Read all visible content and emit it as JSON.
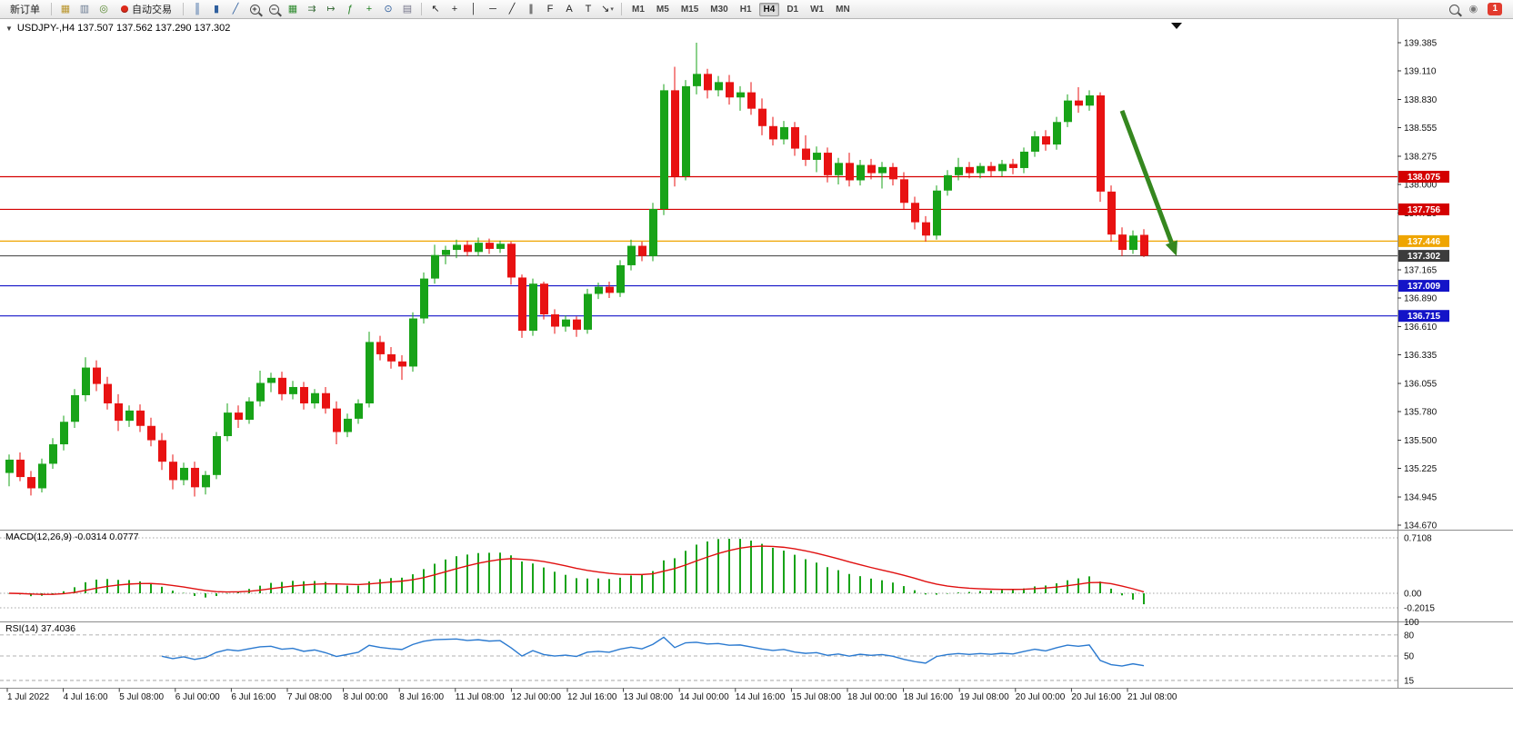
{
  "toolbar": {
    "new_order_label": "新订单",
    "auto_trading_label": "自动交易",
    "notification_count": "1",
    "timeframes": [
      "M1",
      "M5",
      "M15",
      "M30",
      "H1",
      "H4",
      "D1",
      "W1",
      "MN"
    ],
    "active_timeframe": "H4",
    "icons_file": [
      {
        "name": "new-chart-icon",
        "glyph": "▦",
        "color": "#b9952c"
      },
      {
        "name": "profiles-icon",
        "glyph": "▥",
        "color": "#6b7b92"
      },
      {
        "name": "data-window-icon",
        "glyph": "◎",
        "color": "#57872f"
      }
    ],
    "icons_chart": [
      {
        "name": "bar-chart-icon",
        "glyph": "║",
        "color": "#2f5f9e"
      },
      {
        "name": "candlestick-chart-icon",
        "glyph": "▮",
        "color": "#2f5f9e"
      },
      {
        "name": "line-chart-icon",
        "glyph": "╱",
        "color": "#2f5f9e"
      },
      {
        "name": "zoom-in-icon",
        "type": "mag",
        "char": "+"
      },
      {
        "name": "zoom-out-icon",
        "type": "mag",
        "char": "−"
      },
      {
        "name": "tile-windows-icon",
        "glyph": "▦",
        "color": "#2e8b2e"
      },
      {
        "name": "auto-scroll-icon",
        "glyph": "⇉",
        "color": "#3f6f3f"
      },
      {
        "name": "chart-shift-icon",
        "glyph": "↦",
        "color": "#3f6f3f"
      },
      {
        "name": "indicators-icon",
        "glyph": "ƒ",
        "color": "#1f7f1f"
      },
      {
        "name": "add-indicator-icon",
        "glyph": "+",
        "color": "#1f7f1f"
      },
      {
        "name": "timeframes-icon",
        "glyph": "⊙",
        "color": "#33619e"
      },
      {
        "name": "snapshot-icon",
        "glyph": "▤",
        "color": "#76768a"
      }
    ],
    "icons_draw": [
      {
        "name": "cursor-icon",
        "glyph": "↖",
        "color": "#222222"
      },
      {
        "name": "crosshair-icon",
        "glyph": "+",
        "color": "#222222"
      },
      {
        "name": "vertical-line-icon",
        "glyph": "│",
        "color": "#222222"
      },
      {
        "name": "horizontal-line-icon",
        "glyph": "─",
        "color": "#222222"
      },
      {
        "name": "trendline-icon",
        "glyph": "╱",
        "color": "#222222"
      },
      {
        "name": "channel-icon",
        "glyph": "∥",
        "color": "#222222"
      },
      {
        "name": "fibonacci-icon",
        "glyph": "F",
        "color": "#222222"
      },
      {
        "name": "text-icon",
        "glyph": "A",
        "color": "#222222"
      },
      {
        "name": "label-icon",
        "glyph": "T",
        "color": "#222222"
      },
      {
        "name": "arrows-icon",
        "glyph": "↘",
        "color": "#222222",
        "caret": true
      }
    ],
    "icons_right": [
      {
        "name": "search-icon",
        "type": "mag",
        "char": ""
      },
      {
        "name": "community-icon",
        "glyph": "◉",
        "color": "#777777"
      }
    ]
  },
  "chart": {
    "collapse_glyph": "▼",
    "title": "USDJPY-,H4 137.507 137.562 137.290 137.302",
    "macd_label": "MACD(12,26,9) -0.0314 0.0777",
    "rsi_label": "RSI(14) 37.4036",
    "price_axis": [
      "139.385",
      "139.110",
      "138.830",
      "138.555",
      "138.275",
      "138.000",
      "137.720",
      "137.165",
      "136.890",
      "136.610",
      "136.335",
      "136.055",
      "135.780",
      "135.500",
      "135.225",
      "134.945",
      "134.670"
    ],
    "macd_axis": [
      "0.7108",
      "0.00",
      "-0.2015"
    ],
    "rsi_axis": [
      "100",
      "80",
      "50",
      "15"
    ],
    "levels": [
      {
        "price": "138.075",
        "value": 138.075,
        "color": "#d40000",
        "style": "line"
      },
      {
        "price": "137.756",
        "value": 137.756,
        "color": "#d40000",
        "style": "line"
      },
      {
        "price": "137.446",
        "value": 137.446,
        "color": "#efa500",
        "style": "line"
      },
      {
        "price": "137.302",
        "value": 137.302,
        "color": "#3c3c3c",
        "style": "current"
      },
      {
        "price": "137.009",
        "value": 137.009,
        "color": "#1414c8",
        "style": "line"
      },
      {
        "price": "136.715",
        "value": 136.715,
        "color": "#1414c8",
        "style": "line"
      }
    ],
    "time_axis": [
      "1 Jul 2022",
      "4 Jul 16:00",
      "5 Jul 08:00",
      "6 Jul 00:00",
      "6 Jul 16:00",
      "7 Jul 08:00",
      "8 Jul 00:00",
      "8 Jul 16:00",
      "11 Jul 08:00",
      "12 Jul 00:00",
      "12 Jul 16:00",
      "13 Jul 08:00",
      "14 Jul 00:00",
      "14 Jul 16:00",
      "15 Jul 08:00",
      "18 Jul 00:00",
      "18 Jul 16:00",
      "19 Jul 08:00",
      "20 Jul 00:00",
      "20 Jul 16:00",
      "21 Jul 08:00"
    ]
  },
  "chart_data": {
    "type": "candlestick",
    "symbol": "USDJPY-",
    "timeframe": "H4",
    "up_color": "#18a318",
    "down_color": "#e81212",
    "indicators": {
      "macd": {
        "params": "12,26,9",
        "value": "-0.0314",
        "signal_value": "0.0777",
        "histogram_color": "#18a318",
        "signal_color": "#e01010"
      },
      "rsi": {
        "params": "14",
        "value": "37.4036",
        "line_color": "#2b7ad0",
        "levels": [
          80,
          50,
          15
        ]
      }
    },
    "annotation_arrow": {
      "from_bar": 102,
      "from_price": 138.72,
      "to_bar": 107,
      "to_price": 137.3,
      "color": "#35871f"
    },
    "candles": [
      [
        135.18,
        135.36,
        135.05,
        135.31
      ],
      [
        135.31,
        135.38,
        135.1,
        135.14
      ],
      [
        135.14,
        135.2,
        134.96,
        135.03
      ],
      [
        135.03,
        135.32,
        134.99,
        135.27
      ],
      [
        135.27,
        135.52,
        135.22,
        135.46
      ],
      [
        135.46,
        135.74,
        135.4,
        135.68
      ],
      [
        135.68,
        136.0,
        135.62,
        135.94
      ],
      [
        135.94,
        136.31,
        135.88,
        136.21
      ],
      [
        136.21,
        136.28,
        135.98,
        136.05
      ],
      [
        136.05,
        136.12,
        135.8,
        135.86
      ],
      [
        135.86,
        135.95,
        135.59,
        135.69
      ],
      [
        135.69,
        135.84,
        135.63,
        135.79
      ],
      [
        135.79,
        135.85,
        135.58,
        135.64
      ],
      [
        135.64,
        135.72,
        135.44,
        135.5
      ],
      [
        135.5,
        135.57,
        135.21,
        135.29
      ],
      [
        135.29,
        135.36,
        135.02,
        135.11
      ],
      [
        135.11,
        135.28,
        135.06,
        135.23
      ],
      [
        135.23,
        135.29,
        134.95,
        135.04
      ],
      [
        135.04,
        135.2,
        134.97,
        135.16
      ],
      [
        135.16,
        135.58,
        135.12,
        135.54
      ],
      [
        135.54,
        135.86,
        135.49,
        135.77
      ],
      [
        135.77,
        135.84,
        135.62,
        135.7
      ],
      [
        135.7,
        135.92,
        135.66,
        135.88
      ],
      [
        135.88,
        136.18,
        135.83,
        136.06
      ],
      [
        136.06,
        136.16,
        135.97,
        136.11
      ],
      [
        136.11,
        136.17,
        135.89,
        135.95
      ],
      [
        135.95,
        136.08,
        135.9,
        136.02
      ],
      [
        136.02,
        136.07,
        135.8,
        135.86
      ],
      [
        135.86,
        136.0,
        135.81,
        135.96
      ],
      [
        135.96,
        136.02,
        135.76,
        135.81
      ],
      [
        135.81,
        135.88,
        135.46,
        135.58
      ],
      [
        135.58,
        135.76,
        135.53,
        135.71
      ],
      [
        135.71,
        135.9,
        135.66,
        135.86
      ],
      [
        135.86,
        136.56,
        135.82,
        136.46
      ],
      [
        136.46,
        136.52,
        136.28,
        136.34
      ],
      [
        136.34,
        136.41,
        136.2,
        136.27
      ],
      [
        136.27,
        136.33,
        136.09,
        136.22
      ],
      [
        136.22,
        136.75,
        136.17,
        136.69
      ],
      [
        136.69,
        137.14,
        136.64,
        137.08
      ],
      [
        137.08,
        137.41,
        137.03,
        137.31
      ],
      [
        137.31,
        137.4,
        137.22,
        137.36
      ],
      [
        137.36,
        137.46,
        137.28,
        137.41
      ],
      [
        137.41,
        137.45,
        137.3,
        137.34
      ],
      [
        137.34,
        137.48,
        137.3,
        137.43
      ],
      [
        137.43,
        137.47,
        137.32,
        137.37
      ],
      [
        137.37,
        137.45,
        137.33,
        137.42
      ],
      [
        137.42,
        137.44,
        137.02,
        137.09
      ],
      [
        137.09,
        137.12,
        136.5,
        136.57
      ],
      [
        136.57,
        137.08,
        136.52,
        137.03
      ],
      [
        137.03,
        137.05,
        136.68,
        136.73
      ],
      [
        136.73,
        136.78,
        136.54,
        136.61
      ],
      [
        136.61,
        136.72,
        136.56,
        136.68
      ],
      [
        136.68,
        136.71,
        136.51,
        136.58
      ],
      [
        136.58,
        136.98,
        136.54,
        136.93
      ],
      [
        136.93,
        137.04,
        136.88,
        137.0
      ],
      [
        137.0,
        137.05,
        136.89,
        136.94
      ],
      [
        136.94,
        137.26,
        136.9,
        137.21
      ],
      [
        137.21,
        137.46,
        137.16,
        137.4
      ],
      [
        137.4,
        137.44,
        137.25,
        137.3
      ],
      [
        137.3,
        137.82,
        137.25,
        137.76
      ],
      [
        137.76,
        138.98,
        137.7,
        138.92
      ],
      [
        138.92,
        139.15,
        137.98,
        138.08
      ],
      [
        138.08,
        139.02,
        138.04,
        138.96
      ],
      [
        138.96,
        139.385,
        138.88,
        139.08
      ],
      [
        139.08,
        139.13,
        138.84,
        138.92
      ],
      [
        138.92,
        139.06,
        138.86,
        139.0
      ],
      [
        139.0,
        139.07,
        138.78,
        138.85
      ],
      [
        138.85,
        138.96,
        138.72,
        138.9
      ],
      [
        138.9,
        139.0,
        138.68,
        138.74
      ],
      [
        138.74,
        138.84,
        138.48,
        138.57
      ],
      [
        138.57,
        138.66,
        138.38,
        138.44
      ],
      [
        138.44,
        138.62,
        138.39,
        138.56
      ],
      [
        138.56,
        138.61,
        138.28,
        138.35
      ],
      [
        138.35,
        138.48,
        138.18,
        138.24
      ],
      [
        138.24,
        138.37,
        138.12,
        138.31
      ],
      [
        138.31,
        138.36,
        138.02,
        138.09
      ],
      [
        138.09,
        138.26,
        138.0,
        138.21
      ],
      [
        138.21,
        138.31,
        137.98,
        138.04
      ],
      [
        138.04,
        138.24,
        137.99,
        138.19
      ],
      [
        138.19,
        138.25,
        138.05,
        138.11
      ],
      [
        138.11,
        138.22,
        137.96,
        138.17
      ],
      [
        138.17,
        138.21,
        137.99,
        138.05
      ],
      [
        138.05,
        138.12,
        137.76,
        137.82
      ],
      [
        137.82,
        137.88,
        137.56,
        137.63
      ],
      [
        137.63,
        137.69,
        137.44,
        137.5
      ],
      [
        137.5,
        137.99,
        137.46,
        137.94
      ],
      [
        137.94,
        138.14,
        137.89,
        138.09
      ],
      [
        138.09,
        138.26,
        138.04,
        138.17
      ],
      [
        138.17,
        138.22,
        138.06,
        138.11
      ],
      [
        138.11,
        138.21,
        138.06,
        138.18
      ],
      [
        138.18,
        138.22,
        138.07,
        138.13
      ],
      [
        138.13,
        138.24,
        138.08,
        138.2
      ],
      [
        138.2,
        138.25,
        138.1,
        138.16
      ],
      [
        138.16,
        138.36,
        138.11,
        138.32
      ],
      [
        138.32,
        138.52,
        138.27,
        138.47
      ],
      [
        138.47,
        138.53,
        138.33,
        138.39
      ],
      [
        138.39,
        138.66,
        138.34,
        138.61
      ],
      [
        138.61,
        138.88,
        138.56,
        138.82
      ],
      [
        138.82,
        138.95,
        138.7,
        138.77
      ],
      [
        138.77,
        138.92,
        138.72,
        138.87
      ],
      [
        138.87,
        138.9,
        137.83,
        137.93
      ],
      [
        137.93,
        137.99,
        137.44,
        137.51
      ],
      [
        137.51,
        137.58,
        137.3,
        137.36
      ],
      [
        137.36,
        137.55,
        137.32,
        137.5
      ],
      [
        137.507,
        137.562,
        137.29,
        137.302
      ]
    ]
  }
}
